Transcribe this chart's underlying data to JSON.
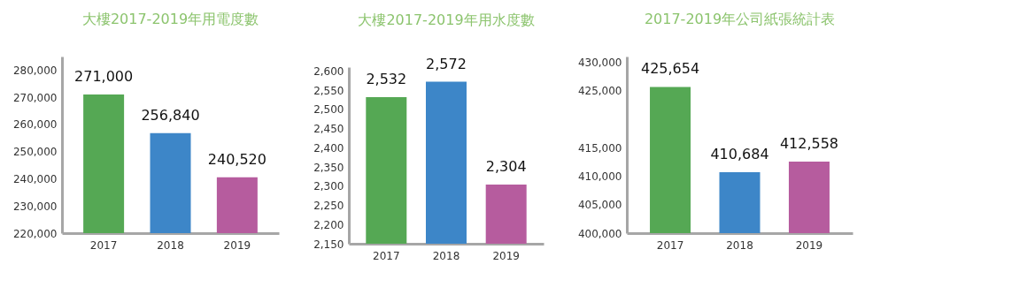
{
  "chart_data": [
    {
      "type": "bar",
      "title": "大樓2017-2019年用電度數",
      "categories": [
        "2017",
        "2018",
        "2019"
      ],
      "values": [
        271000,
        256840,
        240520
      ],
      "value_labels": [
        "271,000",
        "256,840",
        "240,520"
      ],
      "colors": [
        "#55a854",
        "#3d86c8",
        "#b65c9e"
      ],
      "ylim": [
        220000,
        285000
      ],
      "yticks": [
        {
          "value": 220000,
          "label": "220,000"
        },
        {
          "value": 230000,
          "label": "230,000"
        },
        {
          "value": 240000,
          "label": "240,000"
        },
        {
          "value": 250000,
          "label": "250,000"
        },
        {
          "value": 260000,
          "label": "260,000"
        },
        {
          "value": 270000,
          "label": "270,000"
        },
        {
          "value": 280000,
          "label": "280,000"
        }
      ],
      "grid": false
    },
    {
      "type": "bar",
      "title": "大樓2017-2019年用水度數",
      "categories": [
        "2017",
        "2018",
        "2019"
      ],
      "values": [
        2532,
        2572,
        2304
      ],
      "value_labels": [
        "2,532",
        "2,572",
        "2,304"
      ],
      "colors": [
        "#55a854",
        "#3d86c8",
        "#b65c9e"
      ],
      "ylim": [
        2150,
        2610
      ],
      "yticks": [
        {
          "value": 2150,
          "label": "2,150"
        },
        {
          "value": 2200,
          "label": "2,200"
        },
        {
          "value": 2250,
          "label": "2,250"
        },
        {
          "value": 2300,
          "label": "2,300"
        },
        {
          "value": 2350,
          "label": "2,350"
        },
        {
          "value": 2400,
          "label": "2,400"
        },
        {
          "value": 2450,
          "label": "2,450"
        },
        {
          "value": 2500,
          "label": "2,500"
        },
        {
          "value": 2550,
          "label": "2,550"
        },
        {
          "value": 2600,
          "label": "2,600"
        }
      ],
      "grid": false
    },
    {
      "type": "bar",
      "title": "2017-2019年公司紙張統計表",
      "categories": [
        "2017",
        "2018",
        "2019"
      ],
      "values": [
        425654,
        410684,
        412558
      ],
      "value_labels": [
        "425,654",
        "410,684",
        "412,558"
      ],
      "colors": [
        "#55a854",
        "#3d86c8",
        "#b65c9e"
      ],
      "ylim": [
        400000,
        431000
      ],
      "yticks": [
        {
          "value": 400000,
          "label": "400,000"
        },
        {
          "value": 405000,
          "label": "405,000"
        },
        {
          "value": 410000,
          "label": "410,000"
        },
        {
          "value": 415000,
          "label": "415,000"
        },
        {
          "value": 425000,
          "label": "425,000"
        },
        {
          "value": 430000,
          "label": "430,000"
        }
      ],
      "grid": false
    }
  ]
}
